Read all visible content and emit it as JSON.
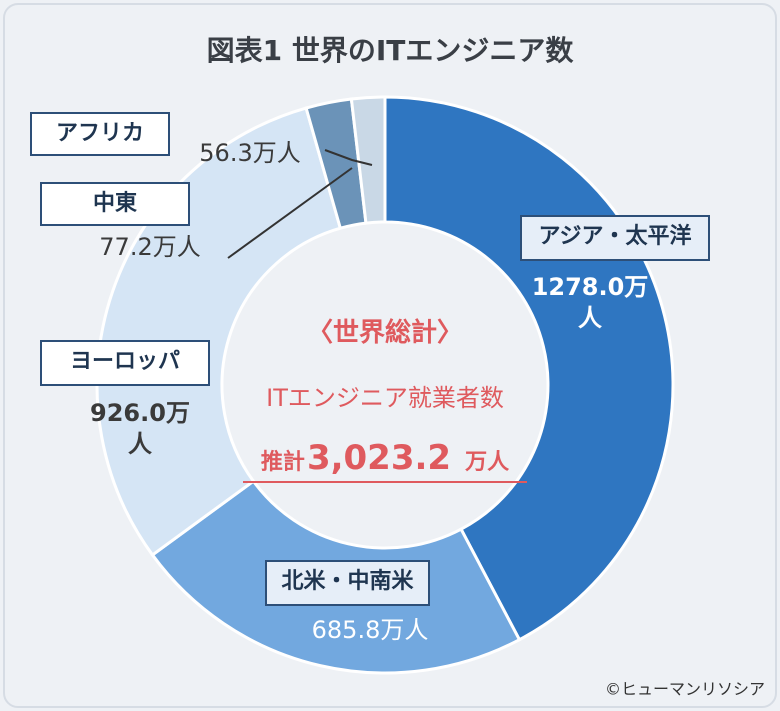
{
  "title": "図表1 世界のITエンジニア数",
  "credit": "©ヒューマンリソシア",
  "center": {
    "heading": "〈世界総計〉",
    "subtitle": "ITエンジニア就業者数",
    "prefix": "推計",
    "total": "3,023.2",
    "unit": "万人"
  },
  "chart_data": {
    "type": "donut",
    "categories": [
      "アジア・太平洋",
      "北米・中南米",
      "ヨーロッパ",
      "中東",
      "アフリカ"
    ],
    "values": [
      1278.0,
      685.8,
      926.0,
      77.2,
      56.3
    ],
    "value_labels": [
      "1278.0万人",
      "685.8万人",
      "926.0万人",
      "77.2万人",
      "56.3万人"
    ],
    "colors": [
      "#2f76c1",
      "#72a8df",
      "#d5e5f5",
      "#6b93b8",
      "#c9d8e6"
    ]
  }
}
